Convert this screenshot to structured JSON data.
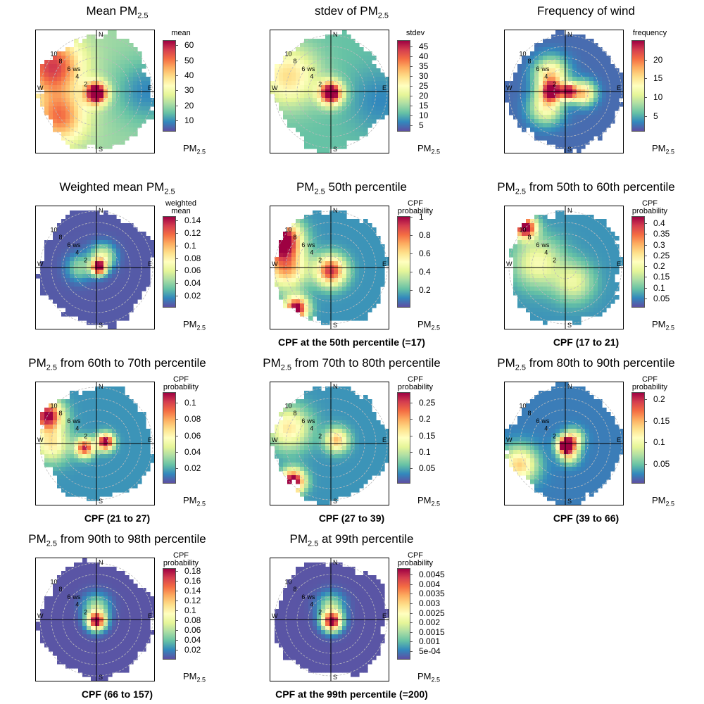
{
  "labels": {
    "ws": "ws",
    "north": "N",
    "south": "S",
    "east": "E",
    "west": "W",
    "rings": [
      "2",
      "4",
      "6",
      "8",
      "10"
    ]
  },
  "colors": [
    "#5E4FA2",
    "#3288BD",
    "#66C2A5",
    "#ABDDA4",
    "#E6F598",
    "#FFFFBF",
    "#FEE08B",
    "#FDAE61",
    "#F46D43",
    "#D53E4F",
    "#9E0142"
  ],
  "chart_data": [
    {
      "type": "heatmap",
      "title_pre": "Mean PM",
      "title_sub": "2.5",
      "title_post": "",
      "legend_title": [
        "mean"
      ],
      "legend_foot": "PM",
      "legend_foot_sub": "2.5",
      "ticks": [
        "60",
        "50",
        "40",
        "30",
        "20",
        "10"
      ],
      "range": [
        3,
        63
      ],
      "cpf_label": "",
      "background": 0.28,
      "blobs": [
        {
          "ws": 0.3,
          "dir": 180,
          "value": 1.0,
          "spread": 1.3
        },
        {
          "ws": 9,
          "dir": 300,
          "value": 0.62,
          "spread": 3.6
        },
        {
          "ws": 8,
          "dir": 235,
          "value": 0.5,
          "spread": 3.2
        },
        {
          "ws": 9,
          "dir": 90,
          "value": -0.18,
          "spread": 4
        }
      ]
    },
    {
      "type": "heatmap",
      "title_pre": "stdev of PM",
      "title_sub": "2.5",
      "title_post": "",
      "legend_title": [
        "stdev"
      ],
      "legend_foot": "PM",
      "legend_foot_sub": "2.5",
      "ticks": [
        "45",
        "40",
        "35",
        "30",
        "25",
        "20",
        "15",
        "10",
        "5"
      ],
      "range": [
        2,
        48
      ],
      "cpf_label": "",
      "background": 0.2,
      "blobs": [
        {
          "ws": 0.3,
          "dir": 180,
          "value": 1.0,
          "spread": 1.4
        },
        {
          "ws": 8,
          "dir": 290,
          "value": 0.4,
          "spread": 3.6
        },
        {
          "ws": 9,
          "dir": 100,
          "value": -0.1,
          "spread": 4
        }
      ]
    },
    {
      "type": "heatmap",
      "title_pre": "Frequency of wind",
      "title_sub": "",
      "title_post": "",
      "legend_title": [
        "frequency"
      ],
      "legend_foot": "PM",
      "legend_foot_sub": "2.5",
      "ticks": [
        "20",
        "15",
        "10",
        "5"
      ],
      "range": [
        1,
        25
      ],
      "cpf_label": "",
      "background": 0.05,
      "blobs": [
        {
          "ws": 2.5,
          "dir": 270,
          "value": 0.85,
          "spread": 1.3
        },
        {
          "ws": 0.6,
          "dir": 90,
          "value": 0.9,
          "spread": 1.0
        },
        {
          "ws": 3.3,
          "dir": 95,
          "value": 0.6,
          "spread": 1.4
        },
        {
          "ws": 4,
          "dir": 320,
          "value": 0.55,
          "spread": 2
        },
        {
          "ws": 4.5,
          "dir": 230,
          "value": 0.45,
          "spread": 2
        }
      ]
    },
    {
      "type": "heatmap",
      "title_pre": "Weighted mean PM",
      "title_sub": "2.5",
      "title_post": "",
      "legend_title": [
        "weighted",
        "mean"
      ],
      "legend_foot": "PM",
      "legend_foot_sub": "2.5",
      "ticks": [
        "0.14",
        "0.12",
        "0.1",
        "0.08",
        "0.06",
        "0.04",
        "0.02"
      ],
      "range": [
        0.002,
        0.146
      ],
      "cpf_label": "",
      "background": 0.02,
      "blobs": [
        {
          "ws": 0.4,
          "dir": 90,
          "value": 1.0,
          "spread": 0.9
        },
        {
          "ws": 2.2,
          "dir": 30,
          "value": 0.42,
          "spread": 1.5
        },
        {
          "ws": 3,
          "dir": 270,
          "value": 0.25,
          "spread": 1.6
        }
      ]
    },
    {
      "type": "heatmap",
      "title_pre": "PM",
      "title_sub": "2.5",
      "title_post": " 50th percentile",
      "legend_title": [
        "CPF",
        "probability"
      ],
      "legend_foot": "PM",
      "legend_foot_sub": "2.5",
      "ticks": [
        "1",
        "0.8",
        "0.6",
        "0.4",
        "0.2"
      ],
      "range": [
        0.02,
        1.0
      ],
      "cpf_label": "CPF at the 50th percentile (=17)",
      "background": 0.12,
      "blobs": [
        {
          "ws": 0.6,
          "dir": 180,
          "value": 0.8,
          "spread": 1.8
        },
        {
          "ws": 10,
          "dir": 300,
          "value": 1.0,
          "spread": 2.2
        },
        {
          "ws": 8,
          "dir": 270,
          "value": 0.6,
          "spread": 2.6
        },
        {
          "ws": 9.5,
          "dir": 220,
          "value": 0.95,
          "spread": 1.4
        }
      ]
    },
    {
      "type": "heatmap",
      "title_pre": "PM",
      "title_sub": "2.5",
      "title_post": " from 50th to 60th percentile",
      "legend_title": [
        "CPF",
        "probability"
      ],
      "legend_foot": "PM",
      "legend_foot_sub": "2.5",
      "ticks": [
        "0.4",
        "0.35",
        "0.3",
        "0.25",
        "0.2",
        "0.15",
        "0.1",
        "0.05"
      ],
      "range": [
        0.01,
        0.43
      ],
      "cpf_label": "CPF (17 to 21)",
      "background": 0.12,
      "blobs": [
        {
          "ws": 10,
          "dir": 315,
          "value": 1.0,
          "spread": 1.3
        },
        {
          "ws": 5,
          "dir": 280,
          "value": 0.35,
          "spread": 3
        },
        {
          "ws": 3,
          "dir": 150,
          "value": 0.3,
          "spread": 2.4
        }
      ]
    },
    {
      "type": "heatmap",
      "title_pre": "PM",
      "title_sub": "2.5",
      "title_post": " from 60th to 70th percentile",
      "legend_title": [
        "CPF",
        "probability"
      ],
      "legend_foot": "PM",
      "legend_foot_sub": "2.5",
      "ticks": [
        "0.1",
        "0.08",
        "0.06",
        "0.04",
        "0.02"
      ],
      "range": [
        0.002,
        0.112
      ],
      "cpf_label": "CPF (21 to 27)",
      "background": 0.12,
      "blobs": [
        {
          "ws": 1.6,
          "dir": 80,
          "value": 1.0,
          "spread": 1.0
        },
        {
          "ws": 2.2,
          "dir": 250,
          "value": 0.82,
          "spread": 1.1
        },
        {
          "ws": 10,
          "dir": 300,
          "value": 0.9,
          "spread": 1.8
        },
        {
          "ws": 8,
          "dir": 270,
          "value": 0.45,
          "spread": 2.2
        }
      ]
    },
    {
      "type": "heatmap",
      "title_pre": "PM",
      "title_sub": "2.5",
      "title_post": " from 70th to 80th percentile",
      "legend_title": [
        "CPF",
        "probability"
      ],
      "legend_foot": "PM",
      "legend_foot_sub": "2.5",
      "ticks": [
        "0.25",
        "0.2",
        "0.15",
        "0.1",
        "0.05"
      ],
      "range": [
        0.005,
        0.28
      ],
      "cpf_label": "CPF (27 to 39)",
      "background": 0.12,
      "blobs": [
        {
          "ws": 1.2,
          "dir": 60,
          "value": 0.55,
          "spread": 1.4
        },
        {
          "ws": 9.5,
          "dir": 225,
          "value": 1.0,
          "spread": 1.4
        },
        {
          "ws": 8,
          "dir": 290,
          "value": 0.45,
          "spread": 2.6
        }
      ]
    },
    {
      "type": "heatmap",
      "title_pre": "PM",
      "title_sub": "2.5",
      "title_post": " from 80th to 90th percentile",
      "legend_title": [
        "CPF",
        "probability"
      ],
      "legend_foot": "PM",
      "legend_foot_sub": "2.5",
      "ticks": [
        "0.2",
        "0.15",
        "0.1",
        "0.05"
      ],
      "range": [
        0.005,
        0.215
      ],
      "cpf_label": "CPF (39 to 66)",
      "background": 0.08,
      "blobs": [
        {
          "ws": 0.3,
          "dir": 180,
          "value": 1.0,
          "spread": 1.0
        },
        {
          "ws": 1.6,
          "dir": 60,
          "value": 0.5,
          "spread": 1.2
        },
        {
          "ws": 2,
          "dir": 160,
          "value": 0.45,
          "spread": 1.2
        },
        {
          "ws": 9,
          "dir": 245,
          "value": 0.55,
          "spread": 2.2
        }
      ]
    },
    {
      "type": "heatmap",
      "title_pre": "PM",
      "title_sub": "2.5",
      "title_post": " from 90th to 98th percentile",
      "legend_title": [
        "CPF",
        "probability"
      ],
      "legend_foot": "PM",
      "legend_foot_sub": "2.5",
      "ticks": [
        "0.18",
        "0.16",
        "0.14",
        "0.12",
        "0.1",
        "0.08",
        "0.06",
        "0.04",
        "0.02"
      ],
      "range": [
        0.002,
        0.185
      ],
      "cpf_label": "CPF (66 to 157)",
      "background": 0.01,
      "blobs": [
        {
          "ws": 0.3,
          "dir": 180,
          "value": 1.0,
          "spread": 1.1
        },
        {
          "ws": 2.2,
          "dir": 0,
          "value": 0.3,
          "spread": 1.6
        }
      ]
    },
    {
      "type": "heatmap",
      "title_pre": "PM",
      "title_sub": "2.5",
      "title_post": " at 99th percentile",
      "legend_title": [
        "CPF",
        "probability"
      ],
      "legend_foot": "PM",
      "legend_foot_sub": "2.5",
      "ticks": [
        "0.0045",
        "0.004",
        "0.0035",
        "0.003",
        "0.0025",
        "0.002",
        "0.0015",
        "0.001",
        "5e-04"
      ],
      "range": [
        0.0001,
        0.0048
      ],
      "cpf_label": "CPF at the 99th percentile (=200)",
      "background": 0.01,
      "blobs": [
        {
          "ws": 0.4,
          "dir": 150,
          "value": 1.0,
          "spread": 1.2
        },
        {
          "ws": 2.4,
          "dir": 0,
          "value": 0.3,
          "spread": 1.6
        }
      ]
    }
  ]
}
